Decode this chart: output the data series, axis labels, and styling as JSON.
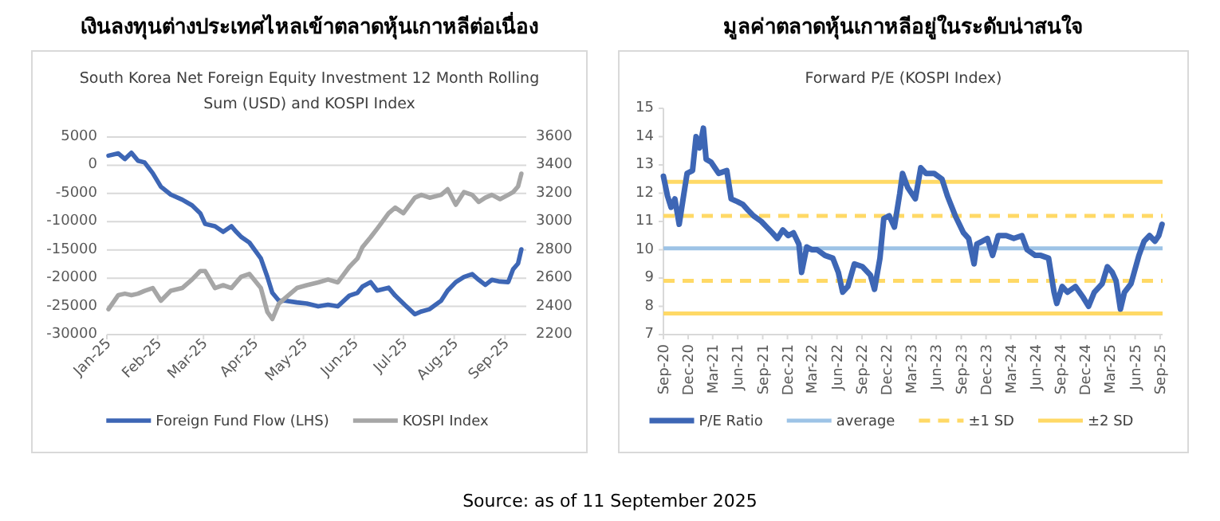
{
  "chart_data": [
    {
      "type": "line",
      "title": "เงินลงทุนต่างประเทศไหลเข้าตลาดหุ้นเกาหลีต่อเนื่อง",
      "subtitle": "South Korea Net Foreign Equity Investment 12 Month Rolling Sum (USD) and KOSPI Index",
      "x": [
        "2025-01-02",
        "2025-01-08",
        "2025-01-12",
        "2025-01-16",
        "2025-01-20",
        "2025-01-24",
        "2025-01-29",
        "2025-02-03",
        "2025-02-09",
        "2025-02-16",
        "2025-02-22",
        "2025-02-27",
        "2025-03-02",
        "2025-03-08",
        "2025-03-13",
        "2025-03-18",
        "2025-03-21",
        "2025-03-24",
        "2025-03-29",
        "2025-04-05",
        "2025-04-09",
        "2025-04-12",
        "2025-04-16",
        "2025-04-20",
        "2025-04-27",
        "2025-05-03",
        "2025-05-10",
        "2025-05-16",
        "2025-05-22",
        "2025-05-29",
        "2025-06-03",
        "2025-06-06",
        "2025-06-11",
        "2025-06-15",
        "2025-06-22",
        "2025-06-26",
        "2025-07-01",
        "2025-07-08",
        "2025-07-12",
        "2025-07-17",
        "2025-07-24",
        "2025-07-28",
        "2025-08-02",
        "2025-08-07",
        "2025-08-12",
        "2025-08-16",
        "2025-08-20",
        "2025-08-24",
        "2025-08-29",
        "2025-09-03",
        "2025-09-06",
        "2025-09-09",
        "2025-09-11"
      ],
      "series": [
        {
          "name": "Foreign Fund Flow (LHS)",
          "color": "#3d66b5",
          "values": [
            1700,
            2100,
            1100,
            2200,
            800,
            500,
            -1400,
            -3800,
            -5200,
            -6100,
            -7100,
            -8500,
            -10400,
            -10800,
            -11800,
            -10800,
            -11800,
            -12700,
            -13700,
            -16500,
            -19800,
            -22600,
            -24000,
            -24000,
            -24300,
            -24500,
            -25000,
            -24700,
            -25000,
            -23100,
            -22600,
            -21500,
            -20700,
            -22200,
            -21700,
            -23100,
            -24500,
            -26400,
            -25900,
            -25500,
            -24000,
            -22200,
            -20700,
            -19800,
            -19300,
            -20300,
            -21200,
            -20300,
            -20600,
            -20700,
            -18400,
            -17400,
            -14900
          ]
        },
        {
          "name": "KOSPI Index",
          "color": "#a6a6a6",
          "axis": "y2",
          "values": [
            2380,
            2480,
            2490,
            2480,
            2490,
            2510,
            2530,
            2440,
            2510,
            2530,
            2590,
            2650,
            2650,
            2530,
            2550,
            2530,
            2570,
            2610,
            2630,
            2530,
            2360,
            2310,
            2420,
            2460,
            2530,
            2550,
            2570,
            2590,
            2570,
            2680,
            2740,
            2820,
            2890,
            2950,
            3060,
            3100,
            3060,
            3170,
            3190,
            3170,
            3190,
            3230,
            3120,
            3210,
            3190,
            3140,
            3170,
            3190,
            3160,
            3190,
            3210,
            3250,
            3340
          ]
        }
      ],
      "xlim": [
        "2025-01-01",
        "2025-09-14"
      ],
      "xticks": [
        {
          "value": "2025-01-01",
          "label": "Jan-25"
        },
        {
          "value": "2025-02-01",
          "label": "Feb-25"
        },
        {
          "value": "2025-03-01",
          "label": "Mar-25"
        },
        {
          "value": "2025-04-01",
          "label": "Apr-25"
        },
        {
          "value": "2025-05-01",
          "label": "May-25"
        },
        {
          "value": "2025-06-01",
          "label": "Jun-25"
        },
        {
          "value": "2025-07-01",
          "label": "Jul-25"
        },
        {
          "value": "2025-08-01",
          "label": "Aug-25"
        },
        {
          "value": "2025-09-01",
          "label": "Sep-25"
        }
      ],
      "ylim": [
        -30000,
        5000
      ],
      "yticks": [
        -30000,
        -25000,
        -20000,
        -15000,
        -10000,
        -5000,
        0,
        5000
      ],
      "y2lim": [
        2200,
        3600
      ],
      "y2ticks": [
        2200,
        2400,
        2600,
        2800,
        3000,
        3200,
        3400,
        3600
      ],
      "grid": "y",
      "legend": "bottom",
      "line_style": "solid",
      "annotations": [
        "Source: as of 11 September 2025"
      ]
    },
    {
      "type": "line",
      "title": "มูลค่าตลาดหุ้นเกาหลีอยู่ในระดับน่าสนใจ",
      "subtitle": "Forward P/E (KOSPI Index)",
      "x": [
        "2020-09-01",
        "2020-09-16",
        "2020-09-29",
        "2020-10-13",
        "2020-10-29",
        "2020-11-14",
        "2020-11-27",
        "2020-12-17",
        "2020-12-30",
        "2021-01-12",
        "2021-01-26",
        "2021-02-05",
        "2021-02-23",
        "2021-03-23",
        "2021-04-22",
        "2021-05-08",
        "2021-05-31",
        "2021-06-20",
        "2021-07-09",
        "2021-07-29",
        "2021-08-27",
        "2021-09-16",
        "2021-10-06",
        "2021-10-25",
        "2021-11-14",
        "2021-12-04",
        "2021-12-23",
        "2022-01-12",
        "2022-01-22",
        "2022-02-10",
        "2022-02-28",
        "2022-03-20",
        "2022-04-18",
        "2022-05-17",
        "2022-06-06",
        "2022-06-22",
        "2022-07-11",
        "2022-08-04",
        "2022-09-03",
        "2022-10-02",
        "2022-10-17",
        "2022-11-06",
        "2022-11-20",
        "2022-12-10",
        "2022-12-29",
        "2023-01-18",
        "2023-01-28",
        "2023-02-16",
        "2023-03-16",
        "2023-04-05",
        "2023-04-24",
        "2023-05-24",
        "2023-06-22",
        "2023-07-12",
        "2023-08-10",
        "2023-09-09",
        "2023-09-28",
        "2023-10-18",
        "2023-10-28",
        "2023-11-17",
        "2023-12-06",
        "2023-12-25",
        "2024-01-15",
        "2024-02-13",
        "2024-03-12",
        "2024-04-11",
        "2024-04-30",
        "2024-05-30",
        "2024-06-19",
        "2024-07-18",
        "2024-08-07",
        "2024-08-17",
        "2024-09-06",
        "2024-09-25",
        "2024-10-25",
        "2024-11-23",
        "2024-12-12",
        "2025-01-02",
        "2025-01-31",
        "2025-02-19",
        "2025-03-09",
        "2025-03-23",
        "2025-04-08",
        "2025-04-23",
        "2025-05-17",
        "2025-06-15",
        "2025-07-04",
        "2025-07-24",
        "2025-08-13",
        "2025-08-27",
        "2025-09-08"
      ],
      "series": [
        {
          "name": "P/E Ratio",
          "color": "#3d66b5",
          "values": [
            12.6,
            11.9,
            11.5,
            11.8,
            10.9,
            11.9,
            12.7,
            12.8,
            14.0,
            13.6,
            14.3,
            13.2,
            13.1,
            12.7,
            12.8,
            11.8,
            11.7,
            11.6,
            11.4,
            11.2,
            11.0,
            10.8,
            10.6,
            10.4,
            10.7,
            10.5,
            10.6,
            10.2,
            9.2,
            10.1,
            10.0,
            10.0,
            9.8,
            9.7,
            9.2,
            8.5,
            8.7,
            9.5,
            9.4,
            9.1,
            8.6,
            9.7,
            11.1,
            11.2,
            10.8,
            12.0,
            12.7,
            12.2,
            11.8,
            12.9,
            12.7,
            12.7,
            12.5,
            11.9,
            11.2,
            10.6,
            10.4,
            9.5,
            10.2,
            10.3,
            10.4,
            9.8,
            10.5,
            10.5,
            10.4,
            10.5,
            10.0,
            9.8,
            9.8,
            9.7,
            8.5,
            8.1,
            8.7,
            8.5,
            8.7,
            8.3,
            8.0,
            8.5,
            8.8,
            9.4,
            9.2,
            8.9,
            7.9,
            8.5,
            8.8,
            9.8,
            10.3,
            10.5,
            10.3,
            10.5,
            10.9
          ]
        }
      ],
      "xlim": [
        "2020-09-01",
        "2025-09-10"
      ],
      "xticks": [
        {
          "value": "2020-09-01",
          "label": "Sep-20"
        },
        {
          "value": "2020-12-01",
          "label": "Dec-20"
        },
        {
          "value": "2021-03-01",
          "label": "Mar-21"
        },
        {
          "value": "2021-06-01",
          "label": "Jun-21"
        },
        {
          "value": "2021-09-01",
          "label": "Sep-21"
        },
        {
          "value": "2021-12-01",
          "label": "Dec-21"
        },
        {
          "value": "2022-03-01",
          "label": "Mar-22"
        },
        {
          "value": "2022-06-01",
          "label": "Jun-22"
        },
        {
          "value": "2022-09-01",
          "label": "Sep-22"
        },
        {
          "value": "2022-12-01",
          "label": "Dec-22"
        },
        {
          "value": "2023-03-01",
          "label": "Mar-23"
        },
        {
          "value": "2023-06-01",
          "label": "Jun-23"
        },
        {
          "value": "2023-09-01",
          "label": "Sep-23"
        },
        {
          "value": "2023-12-01",
          "label": "Dec-23"
        },
        {
          "value": "2024-03-01",
          "label": "Mar-24"
        },
        {
          "value": "2024-06-01",
          "label": "Jun-24"
        },
        {
          "value": "2024-09-01",
          "label": "Sep-24"
        },
        {
          "value": "2024-12-01",
          "label": "Dec-24"
        },
        {
          "value": "2025-03-01",
          "label": "Mar-25"
        },
        {
          "value": "2025-06-01",
          "label": "Jun-25"
        },
        {
          "value": "2025-09-01",
          "label": "Sep-25"
        }
      ],
      "ylim": [
        7,
        15
      ],
      "yticks": [
        7,
        8,
        9,
        10,
        11,
        12,
        13,
        14,
        15
      ],
      "legend": "bottom",
      "line_style": "solid",
      "ref_lines": [
        {
          "axis": "y",
          "value": 10.05,
          "label": "average",
          "color": "#9dc3e6",
          "line_style": "solid"
        },
        {
          "axis": "y",
          "value": 11.2,
          "label": "±1 SD",
          "color": "#ffd966",
          "line_style": "dashed"
        },
        {
          "axis": "y",
          "value": 8.9,
          "color": "#ffd966",
          "line_style": "dashed"
        },
        {
          "axis": "y",
          "value": 12.4,
          "label": "±2 SD",
          "color": "#ffd966",
          "line_style": "solid"
        },
        {
          "axis": "y",
          "value": 7.75,
          "color": "#ffd966",
          "line_style": "solid"
        }
      ]
    }
  ]
}
